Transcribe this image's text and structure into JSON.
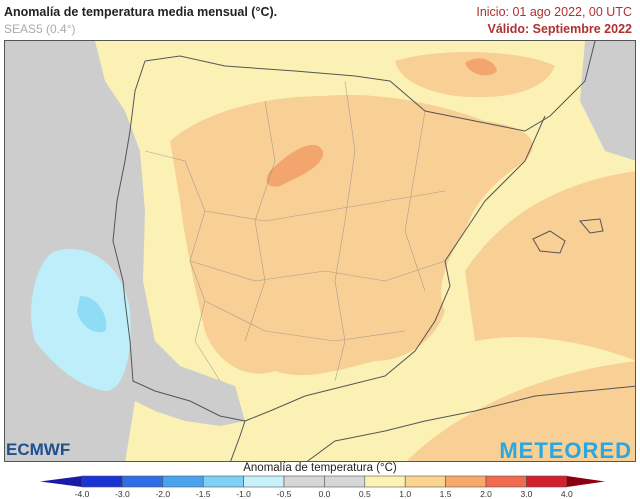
{
  "header": {
    "title": "Anomalía de temperatura media mensual (°C).",
    "model": "SEAS5 (0.4°)",
    "init": "Inicio: 01 ago 2022, 00 UTC",
    "valid": "Válido: Septiembre 2022"
  },
  "logos": {
    "left": "ECMWF",
    "right": "METEORED"
  },
  "colorbar": {
    "title": "Anomalía de temperatura (°C)",
    "ticks": [
      "-4.0",
      "-3.0",
      "-2.0",
      "-1.5",
      "-1.0",
      "-0.5",
      "0.0",
      "0.5",
      "1.0",
      "1.5",
      "2.0",
      "3.0",
      "4.0"
    ],
    "colors": [
      "#1a33d6",
      "#2f6ee8",
      "#4aa3ee",
      "#7fd0f5",
      "#c8f2fb",
      "#d6d6d6",
      "#d6d6d6",
      "#fdf2b2",
      "#fbd48f",
      "#f7a96a",
      "#ef6a4e",
      "#d4202c"
    ],
    "under": "#1a1aa8",
    "over": "#8b0010"
  },
  "colors": {
    "sea_neutral": "#cdcdcd",
    "land_yellow": "#fbf1b4",
    "orange": "#f8cf95",
    "orange_dark": "#f2a56c",
    "blue_light": "#bdeefa",
    "blue": "#8fdcf5",
    "border": "#555555"
  }
}
